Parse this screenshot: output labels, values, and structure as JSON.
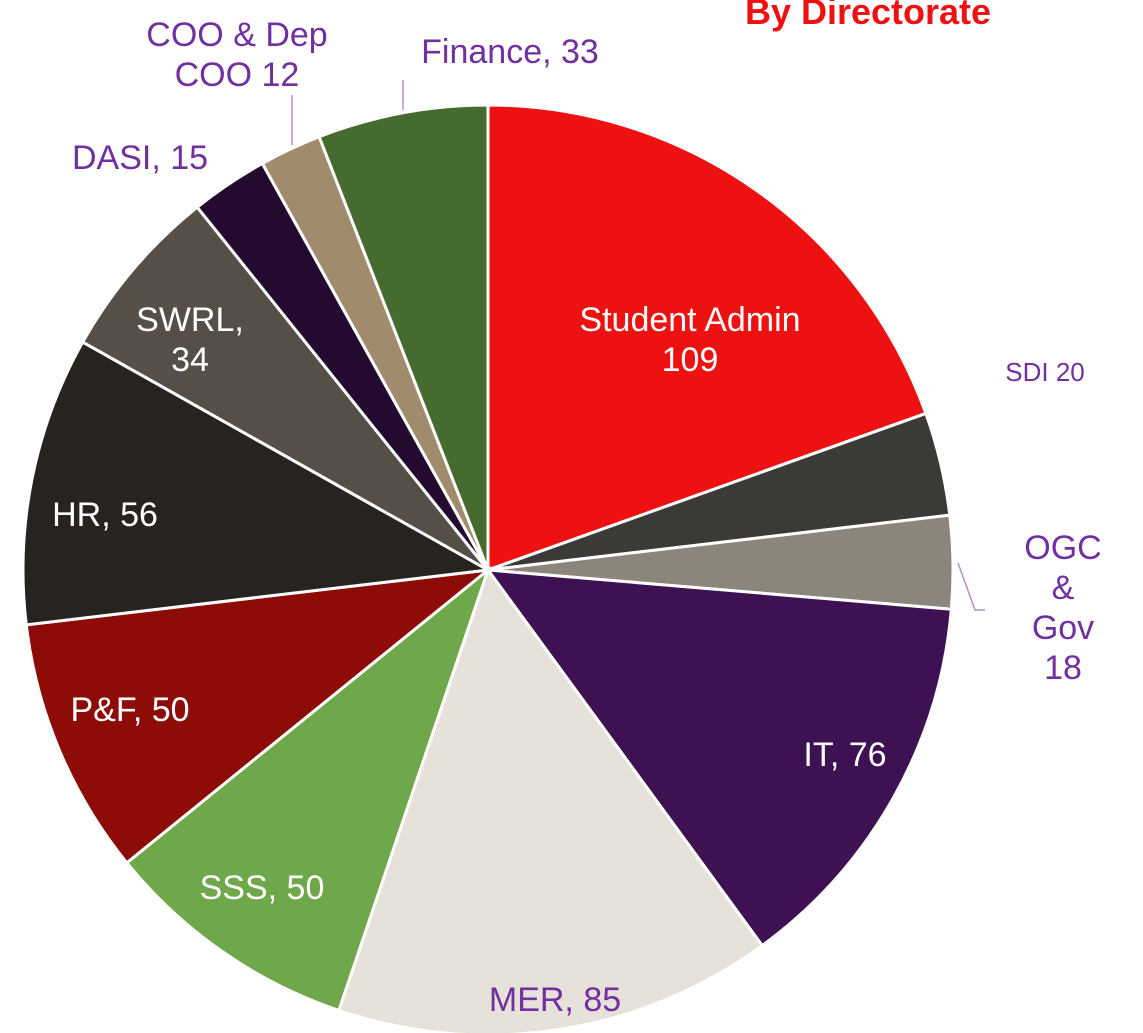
{
  "chart_data": {
    "type": "pie",
    "title": "By Directorate",
    "values": [
      109,
      20,
      18,
      76,
      85,
      50,
      50,
      56,
      34,
      15,
      12,
      33
    ],
    "value_labels": [
      "Student Admin\n109",
      "SDI 20",
      "OGC &\nGov 18",
      "IT, 76",
      "MER, 85",
      "SSS, 50",
      "P&F, 50",
      "HR, 56",
      "SWRL,\n34",
      "DASI, 15",
      "COO & Dep\nCOO 12",
      "Finance, 33"
    ],
    "colors": [
      "#ee1111",
      "#3c3a36",
      "#8c857b",
      "#3d1152",
      "#e6e2da",
      "#6fa84a",
      "#8e0c08",
      "#27231f",
      "#554f48",
      "#250a30",
      "#a08c6c",
      "#466b2e"
    ],
    "label_colors": [
      "#ffffff",
      "#7030a0",
      "#7030a0",
      "#ffffff",
      "#7030a0",
      "#ffffff",
      "#ffffff",
      "#ffffff",
      "#ffffff",
      "#7030a0",
      "#7030a0",
      "#7030a0"
    ]
  }
}
